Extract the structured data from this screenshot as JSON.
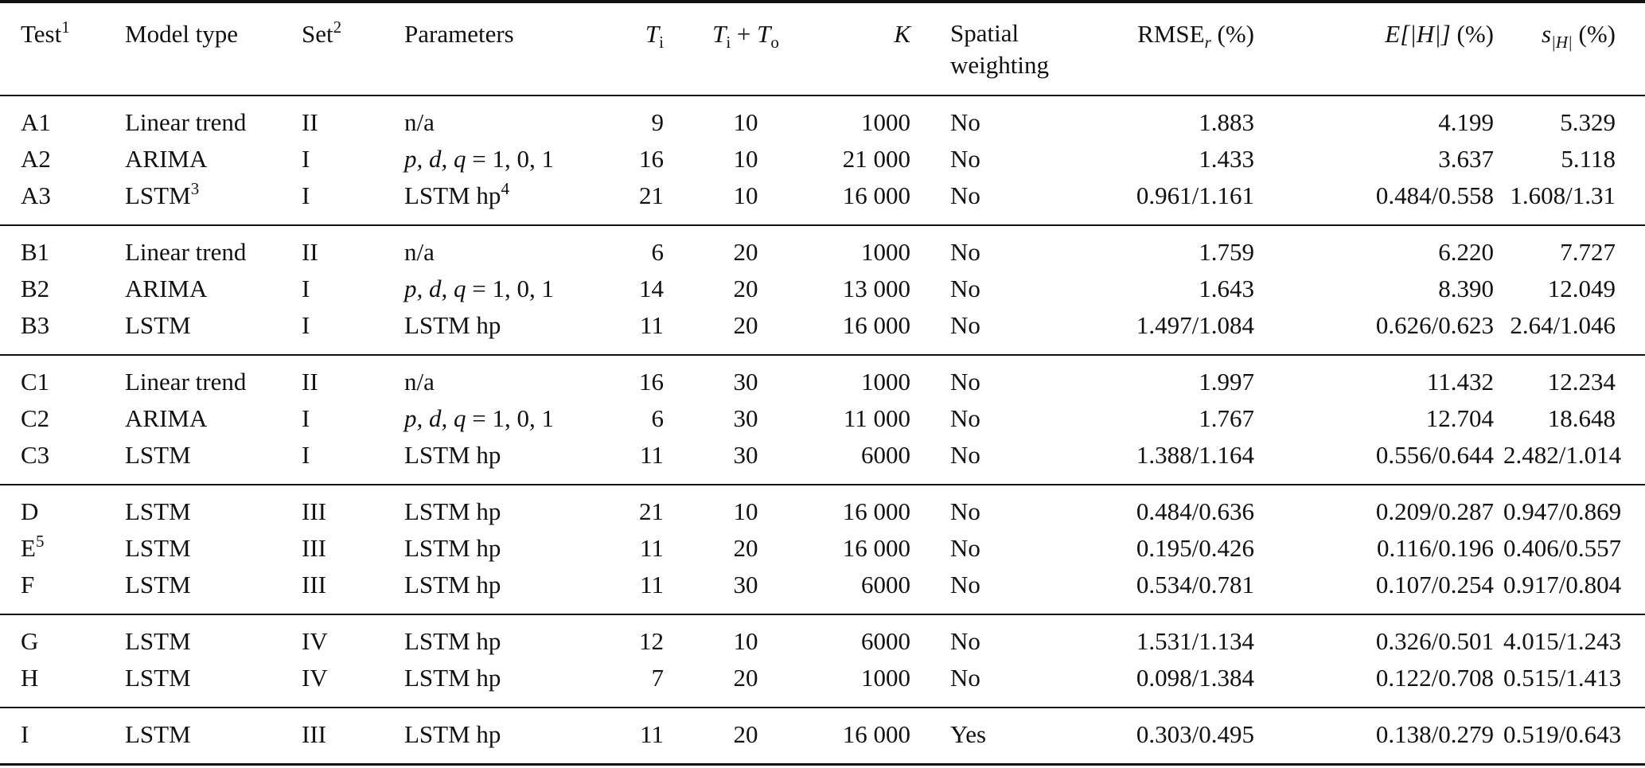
{
  "header": {
    "test": {
      "label": "Test",
      "sup": "1"
    },
    "model_type": "Model type",
    "set": {
      "label": "Set",
      "sup": "2"
    },
    "parameters": "Parameters",
    "ti": {
      "T": "T",
      "sub": "i"
    },
    "ti_to": {
      "T1": "T",
      "sub1": "i",
      "plus": " + ",
      "T2": "T",
      "sub2": "o"
    },
    "k": "K",
    "spatial": {
      "line1": "Spatial",
      "line2": "weighting"
    },
    "rmse": {
      "label": "RMSE",
      "sub": "r",
      "unit": " (%)"
    },
    "e": {
      "label": "E[|H|]",
      "unit": " (%)"
    },
    "s": {
      "label": "s",
      "sub": "|H|",
      "unit": " (%)"
    }
  },
  "groups": [
    [
      {
        "test": "A1",
        "test_sup": "",
        "model": "Linear trend",
        "model_sup": "",
        "set": "II",
        "params": "n/a",
        "params_math": false,
        "params_sup": "",
        "ti": "9",
        "ti_to": "10",
        "k": "1000",
        "spatial": "No",
        "rmse": "1.883",
        "e": "4.199",
        "s": "5.329"
      },
      {
        "test": "A2",
        "test_sup": "",
        "model": "ARIMA",
        "model_sup": "",
        "set": "I",
        "params": "p, d, q",
        "params_math": true,
        "params_rest": " = 1, 0, 1",
        "params_sup": "",
        "ti": "16",
        "ti_to": "10",
        "k": "21 000",
        "spatial": "No",
        "rmse": "1.433",
        "e": "3.637",
        "s": "5.118"
      },
      {
        "test": "A3",
        "test_sup": "",
        "model": "LSTM",
        "model_sup": "3",
        "set": "I",
        "params": "LSTM hp",
        "params_math": false,
        "params_sup": "4",
        "ti": "21",
        "ti_to": "10",
        "k": "16 000",
        "spatial": "No",
        "rmse": "0.961/1.161",
        "e": "0.484/0.558",
        "s": "1.608/1.31"
      }
    ],
    [
      {
        "test": "B1",
        "test_sup": "",
        "model": "Linear trend",
        "model_sup": "",
        "set": "II",
        "params": "n/a",
        "params_math": false,
        "params_sup": "",
        "ti": "6",
        "ti_to": "20",
        "k": "1000",
        "spatial": "No",
        "rmse": "1.759",
        "e": "6.220",
        "s": "7.727"
      },
      {
        "test": "B2",
        "test_sup": "",
        "model": "ARIMA",
        "model_sup": "",
        "set": "I",
        "params": "p, d, q",
        "params_math": true,
        "params_rest": " = 1, 0, 1",
        "params_sup": "",
        "ti": "14",
        "ti_to": "20",
        "k": "13 000",
        "spatial": "No",
        "rmse": "1.643",
        "e": "8.390",
        "s": "12.049"
      },
      {
        "test": "B3",
        "test_sup": "",
        "model": "LSTM",
        "model_sup": "",
        "set": "I",
        "params": "LSTM hp",
        "params_math": false,
        "params_sup": "",
        "ti": "11",
        "ti_to": "20",
        "k": "16 000",
        "spatial": "No",
        "rmse": "1.497/1.084",
        "e": "0.626/0.623",
        "s": "2.64/1.046"
      }
    ],
    [
      {
        "test": "C1",
        "test_sup": "",
        "model": "Linear trend",
        "model_sup": "",
        "set": "II",
        "params": "n/a",
        "params_math": false,
        "params_sup": "",
        "ti": "16",
        "ti_to": "30",
        "k": "1000",
        "spatial": "No",
        "rmse": "1.997",
        "e": "11.432",
        "s": "12.234"
      },
      {
        "test": "C2",
        "test_sup": "",
        "model": "ARIMA",
        "model_sup": "",
        "set": "I",
        "params": "p, d, q",
        "params_math": true,
        "params_rest": " = 1, 0, 1",
        "params_sup": "",
        "ti": "6",
        "ti_to": "30",
        "k": "11 000",
        "spatial": "No",
        "rmse": "1.767",
        "e": "12.704",
        "s": "18.648"
      },
      {
        "test": "C3",
        "test_sup": "",
        "model": "LSTM",
        "model_sup": "",
        "set": "I",
        "params": "LSTM hp",
        "params_math": false,
        "params_sup": "",
        "ti": "11",
        "ti_to": "30",
        "k": "6000",
        "spatial": "No",
        "rmse": "1.388/1.164",
        "e": "0.556/0.644",
        "s": "2.482/1.014"
      }
    ],
    [
      {
        "test": "D",
        "test_sup": "",
        "model": "LSTM",
        "model_sup": "",
        "set": "III",
        "params": "LSTM hp",
        "params_math": false,
        "params_sup": "",
        "ti": "21",
        "ti_to": "10",
        "k": "16 000",
        "spatial": "No",
        "rmse": "0.484/0.636",
        "e": "0.209/0.287",
        "s": "0.947/0.869"
      },
      {
        "test": "E",
        "test_sup": "5",
        "model": "LSTM",
        "model_sup": "",
        "set": "III",
        "params": "LSTM hp",
        "params_math": false,
        "params_sup": "",
        "ti": "11",
        "ti_to": "20",
        "k": "16 000",
        "spatial": "No",
        "rmse": "0.195/0.426",
        "e": "0.116/0.196",
        "s": "0.406/0.557"
      },
      {
        "test": "F",
        "test_sup": "",
        "model": "LSTM",
        "model_sup": "",
        "set": "III",
        "params": "LSTM hp",
        "params_math": false,
        "params_sup": "",
        "ti": "11",
        "ti_to": "30",
        "k": "6000",
        "spatial": "No",
        "rmse": "0.534/0.781",
        "e": "0.107/0.254",
        "s": "0.917/0.804"
      }
    ],
    [
      {
        "test": "G",
        "test_sup": "",
        "model": "LSTM",
        "model_sup": "",
        "set": "IV",
        "params": "LSTM hp",
        "params_math": false,
        "params_sup": "",
        "ti": "12",
        "ti_to": "10",
        "k": "6000",
        "spatial": "No",
        "rmse": "1.531/1.134",
        "e": "0.326/0.501",
        "s": "4.015/1.243"
      },
      {
        "test": "H",
        "test_sup": "",
        "model": "LSTM",
        "model_sup": "",
        "set": "IV",
        "params": "LSTM hp",
        "params_math": false,
        "params_sup": "",
        "ti": "7",
        "ti_to": "20",
        "k": "1000",
        "spatial": "No",
        "rmse": "0.098/1.384",
        "e": "0.122/0.708",
        "s": "0.515/1.413"
      }
    ],
    [
      {
        "test": "I",
        "test_sup": "",
        "model": "LSTM",
        "model_sup": "",
        "set": "III",
        "params": "LSTM hp",
        "params_math": false,
        "params_sup": "",
        "ti": "11",
        "ti_to": "20",
        "k": "16 000",
        "spatial": "Yes",
        "rmse": "0.303/0.495",
        "e": "0.138/0.279",
        "s": "0.519/0.643"
      }
    ]
  ]
}
